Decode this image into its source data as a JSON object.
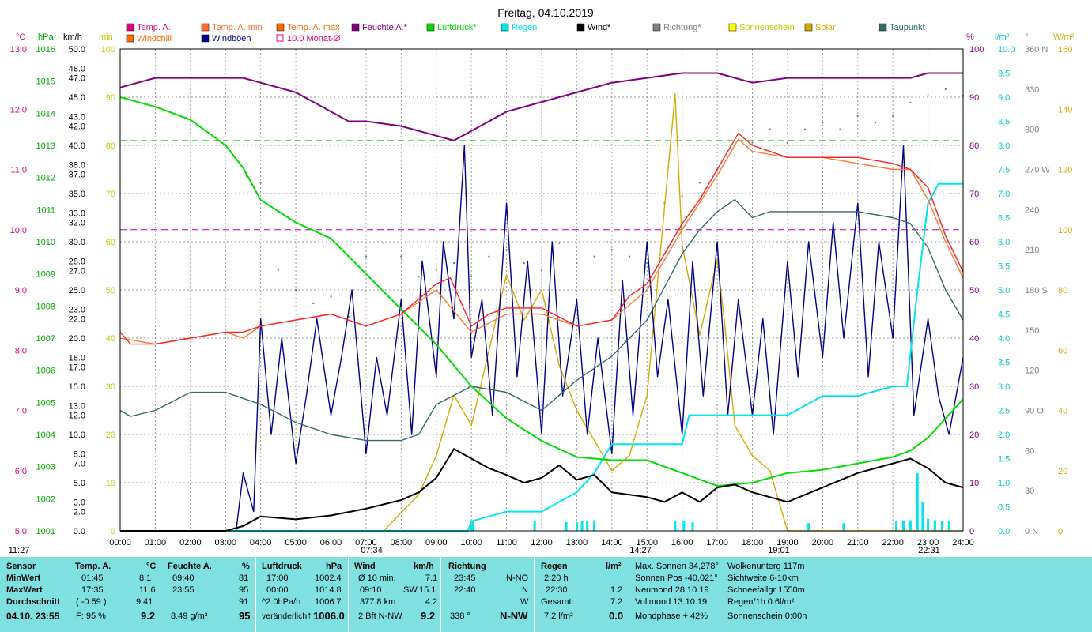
{
  "chart_data": {
    "type": "line",
    "title": "Freitag, 04.10.2019",
    "x_ticks": [
      "00:00",
      "01:00",
      "02:00",
      "03:00",
      "04:00",
      "05:00",
      "06:00",
      "07:00",
      "08:00",
      "09:00",
      "10:00",
      "11:00",
      "12:00",
      "13:00",
      "14:00",
      "15:00",
      "16:00",
      "17:00",
      "18:00",
      "19:00",
      "20:00",
      "21:00",
      "22:00",
      "23:00",
      "24:00"
    ],
    "sun_events": [
      "11:27",
      "07:34",
      "14:27",
      "19:01",
      "22:31"
    ],
    "legend": [
      {
        "name": "Temp. A.",
        "color": "#e0007f"
      },
      {
        "name": "Temp. A. min",
        "color": "#ff6a2a"
      },
      {
        "name": "Temp. A. max",
        "color": "#ff6a00"
      },
      {
        "name": "Feuchte A.*",
        "color": "#800080"
      },
      {
        "name": "Luftdruck*",
        "color": "#00dd00"
      },
      {
        "name": "Regen",
        "color": "#00e5ee"
      },
      {
        "name": "Wind*",
        "color": "#000000"
      },
      {
        "name": "Richtung*",
        "color": "#808080"
      },
      {
        "name": "Sonnenschein",
        "color": "#ffff00"
      },
      {
        "name": "Solar",
        "color": "#d4aa00"
      },
      {
        "name": "Taupunkt",
        "color": "#2e6b6b"
      },
      {
        "name": "Windchill",
        "color": "#ff6a00"
      },
      {
        "name": "Windböen",
        "color": "#00008b"
      },
      {
        "name": "10.0 Monat-Ø",
        "color": "#e0007f"
      }
    ],
    "axes": {
      "temp": {
        "unit": "°C",
        "ticks": [
          "13.0",
          "12.0",
          "11.0",
          "10.0",
          "9.0",
          "8.0",
          "7.0",
          "6.0",
          "5.0"
        ],
        "range": [
          5,
          13
        ]
      },
      "pressure": {
        "unit": "hPa",
        "ticks": [
          "1016",
          "1015",
          "1014",
          "1013",
          "1012",
          "1011",
          "1010",
          "1009",
          "1008",
          "1007",
          "1006",
          "1005",
          "1004",
          "1003",
          "1002",
          "1001"
        ],
        "range": [
          1001,
          1016
        ]
      },
      "wind": {
        "unit": "km/h",
        "ticks": [
          "50.0",
          "48.0",
          "47.0",
          "45.0",
          "43.0",
          "42.0",
          "40.0",
          "38.0",
          "37.0",
          "35.0",
          "33.0",
          "32.0",
          "30.0",
          "28.0",
          "27.0",
          "25.0",
          "23.0",
          "22.0",
          "20.0",
          "18.0",
          "17.0",
          "15.0",
          "13.0",
          "12.0",
          "10.0",
          "8.0",
          "7.0",
          "5.0",
          "3.0",
          "2.0",
          "0.0"
        ],
        "range": [
          0,
          50
        ]
      },
      "min": {
        "unit": "min",
        "ticks": [
          "100",
          "90",
          "80",
          "70",
          "60",
          "50",
          "40",
          "30",
          "20",
          "10",
          "0"
        ],
        "range": [
          0,
          100
        ]
      },
      "humidity": {
        "unit": "%",
        "ticks": [
          "100",
          "90",
          "80",
          "70",
          "60",
          "50",
          "40",
          "30",
          "20",
          "10",
          "0"
        ],
        "range": [
          0,
          100
        ]
      },
      "rain": {
        "unit": "l/m²",
        "ticks": [
          "10.0",
          "9.5",
          "9.0",
          "8.5",
          "8.0",
          "7.5",
          "7.0",
          "6.5",
          "6.0",
          "5.5",
          "5.0",
          "4.5",
          "4.0",
          "3.5",
          "3.0",
          "2.5",
          "2.0",
          "1.5",
          "1.0",
          "0.5",
          "0.0"
        ],
        "range": [
          0,
          10
        ]
      },
      "direction": {
        "unit": "°",
        "ticks": [
          "360 N",
          "330",
          "300",
          "270 W",
          "240",
          "210",
          "180 S",
          "150",
          "120",
          "90 O",
          "60",
          "30",
          "0 N"
        ],
        "range": [
          0,
          360
        ]
      },
      "solar": {
        "unit": "W/m²",
        "ticks": [
          "160",
          "140",
          "120",
          "100",
          "80",
          "60",
          "40",
          "20",
          "0"
        ],
        "range": [
          0,
          160
        ]
      }
    },
    "ref_lines": [
      {
        "name": "monthly avg temp",
        "value": 10.0,
        "color": "#aa00aa"
      },
      {
        "name": "humidity ref",
        "value": 81,
        "color": "#00cc00"
      }
    ],
    "series": [
      {
        "name": "Temp. A.",
        "axis": "temp",
        "color": "#ff2020",
        "x": [
          0,
          0.3,
          1,
          2,
          3,
          3.5,
          4,
          5,
          6,
          7,
          8,
          9,
          9.4,
          10,
          10.5,
          11,
          12,
          13,
          14,
          14.5,
          15,
          16,
          16.5,
          17,
          17.6,
          18,
          18.5,
          19,
          20,
          21,
          22,
          22.5,
          23,
          23.5,
          24
        ],
        "y": [
          8.3,
          8.1,
          8.1,
          8.2,
          8.3,
          8.3,
          8.4,
          8.5,
          8.6,
          8.4,
          8.6,
          9.1,
          9.2,
          8.4,
          8.6,
          8.7,
          8.7,
          8.4,
          8.5,
          8.9,
          9.1,
          10.1,
          10.5,
          11.0,
          11.6,
          11.4,
          11.3,
          11.2,
          11.2,
          11.2,
          11.1,
          11.0,
          10.7,
          9.9,
          9.3
        ]
      },
      {
        "name": "Temp. A. min",
        "axis": "temp",
        "color": "#ff7a30",
        "x": [
          0,
          1,
          2,
          3,
          3.5,
          4,
          5,
          6,
          7,
          8,
          9,
          10,
          11,
          12,
          13,
          14,
          15,
          16,
          17,
          17.6,
          18,
          19,
          20,
          21,
          22,
          22.5,
          23,
          23.5,
          24
        ],
        "y": [
          8.2,
          8.1,
          8.2,
          8.3,
          8.2,
          8.4,
          8.5,
          8.6,
          8.4,
          8.6,
          9.0,
          8.3,
          8.6,
          8.6,
          8.4,
          8.5,
          9.0,
          10.0,
          10.9,
          11.5,
          11.3,
          11.2,
          11.2,
          11.1,
          11.0,
          11.0,
          10.5,
          9.8,
          9.2
        ]
      },
      {
        "name": "Feuchte A.*",
        "axis": "humidity",
        "color": "#800080",
        "x": [
          0,
          0.5,
          1,
          2,
          3,
          3.5,
          4,
          5,
          6,
          6.5,
          7,
          8,
          9,
          9.5,
          10,
          11,
          12,
          13,
          14,
          15,
          16,
          17,
          17.5,
          18,
          19,
          20,
          21,
          22,
          22.5,
          23,
          24
        ],
        "y": [
          92,
          93,
          94,
          94,
          94,
          94,
          93,
          91,
          87,
          85,
          85,
          84,
          82,
          81,
          83,
          87,
          89,
          91,
          93,
          94,
          95,
          95,
          94,
          93,
          94,
          94,
          94,
          94,
          94,
          95,
          95
        ]
      },
      {
        "name": "Luftdruck*",
        "axis": "pressure",
        "color": "#00dd00",
        "x": [
          0,
          1,
          2,
          3,
          3.5,
          4,
          5,
          6,
          7,
          8,
          9,
          10,
          11,
          12,
          13,
          14,
          15,
          16,
          17,
          18,
          19,
          20,
          21,
          22,
          22.5,
          23,
          24
        ],
        "y": [
          1014.5,
          1014.2,
          1013.8,
          1013.0,
          1012.3,
          1011.3,
          1010.6,
          1010.1,
          1009.0,
          1007.9,
          1006.8,
          1005.5,
          1004.5,
          1003.8,
          1003.3,
          1003.2,
          1003.2,
          1002.8,
          1002.4,
          1002.5,
          1002.8,
          1002.9,
          1003.1,
          1003.3,
          1003.5,
          1003.9,
          1005.1
        ]
      },
      {
        "name": "Regen",
        "axis": "rain",
        "color": "#00e5ee",
        "x": [
          0,
          9.9,
          10,
          11,
          12,
          12.5,
          13,
          13.5,
          14,
          15,
          16,
          16.2,
          17,
          18,
          19,
          19.5,
          20,
          21,
          22,
          22.4,
          22.7,
          23,
          23.3,
          23.7,
          24
        ],
        "y": [
          0,
          0,
          0.2,
          0.4,
          0.4,
          0.6,
          0.8,
          1.2,
          1.8,
          1.8,
          1.8,
          2.4,
          2.4,
          2.4,
          2.4,
          2.6,
          2.8,
          2.8,
          3.0,
          3.0,
          5.0,
          6.8,
          7.2,
          7.2,
          7.2
        ]
      },
      {
        "name": "Taupunkt",
        "axis": "temp",
        "color": "#2e6b6b",
        "x": [
          0,
          0.3,
          1,
          2,
          3,
          3.5,
          4,
          5,
          6,
          7,
          7.5,
          8,
          8.5,
          9,
          10,
          11,
          12,
          13,
          14,
          15,
          16,
          16.5,
          17,
          17.5,
          18,
          18.5,
          19,
          20,
          21,
          22,
          22.5,
          23,
          23.5,
          24
        ],
        "y": [
          7.0,
          6.9,
          7.0,
          7.3,
          7.3,
          7.2,
          7.1,
          6.8,
          6.6,
          6.5,
          6.5,
          6.5,
          6.6,
          7.1,
          7.4,
          7.3,
          7.0,
          7.5,
          7.9,
          8.5,
          9.6,
          10.0,
          10.3,
          10.5,
          10.2,
          10.3,
          10.3,
          10.3,
          10.3,
          10.2,
          10.1,
          9.7,
          9.0,
          8.5
        ]
      },
      {
        "name": "Solar",
        "axis": "solar",
        "color": "#d4aa00",
        "x": [
          0,
          7.5,
          8,
          8.5,
          9,
          9.5,
          10,
          10.5,
          11,
          11.5,
          12,
          12.5,
          13,
          13.5,
          14,
          14.5,
          15,
          15.4,
          15.8,
          16,
          16.5,
          17,
          17.2,
          17.5,
          18,
          18.5,
          19,
          20,
          24
        ],
        "y": [
          0,
          0,
          6,
          12,
          25,
          45,
          35,
          60,
          85,
          70,
          80,
          55,
          40,
          30,
          20,
          25,
          45,
          95,
          145,
          95,
          65,
          90,
          70,
          35,
          25,
          20,
          0,
          0,
          0
        ]
      },
      {
        "name": "Wind*",
        "axis": "wind",
        "color": "#000000",
        "x": [
          0,
          3,
          3.5,
          4,
          5,
          6,
          7,
          8,
          8.5,
          9,
          9.5,
          10,
          10.5,
          11,
          11.5,
          12,
          12.5,
          13,
          13.5,
          14,
          15,
          15.5,
          16,
          16.5,
          17,
          17.5,
          18,
          18.5,
          19,
          20,
          21,
          22,
          22.5,
          23,
          23.5,
          24
        ],
        "y": [
          0,
          0,
          0.5,
          1.5,
          1.2,
          1.6,
          2.3,
          3.2,
          4.0,
          5.5,
          8.5,
          7.5,
          6.5,
          5.8,
          5.0,
          5.5,
          6.8,
          5.3,
          5.8,
          4.0,
          3.5,
          3.0,
          4.0,
          3.0,
          4.5,
          4.8,
          4.0,
          3.5,
          3.0,
          4.5,
          6.0,
          7.0,
          7.5,
          6.5,
          5.0,
          4.5
        ]
      },
      {
        "name": "Windböen",
        "axis": "wind",
        "color": "#00008b",
        "x": [
          0,
          3.3,
          3.5,
          3.8,
          4,
          4.3,
          4.6,
          5,
          5.3,
          5.6,
          6,
          6.3,
          6.6,
          7,
          7.3,
          7.6,
          8,
          8.3,
          8.6,
          9,
          9.2,
          9.5,
          9.8,
          10,
          10.3,
          10.6,
          11,
          11.3,
          11.6,
          12,
          12.3,
          12.6,
          13,
          13.3,
          13.6,
          14,
          14.3,
          14.6,
          15,
          15.3,
          15.6,
          16,
          16.3,
          16.6,
          17,
          17.3,
          17.6,
          18,
          18.3,
          18.6,
          19,
          19.3,
          19.6,
          20,
          20.3,
          20.6,
          21,
          21.3,
          21.6,
          22,
          22.3,
          22.6,
          23,
          23.3,
          23.6,
          24
        ],
        "y": [
          0,
          0,
          6,
          2,
          22,
          10,
          20,
          7,
          14,
          22,
          12,
          18,
          25,
          8,
          18,
          12,
          24,
          10,
          28,
          16,
          30,
          22,
          40,
          18,
          24,
          12,
          34,
          16,
          28,
          10,
          30,
          14,
          24,
          10,
          20,
          8,
          26,
          12,
          30,
          16,
          24,
          10,
          28,
          14,
          30,
          12,
          24,
          12,
          22,
          10,
          28,
          16,
          30,
          18,
          32,
          20,
          34,
          16,
          30,
          20,
          40,
          12,
          22,
          14,
          10,
          18
        ]
      }
    ],
    "direction_points_deg": [
      [
        3.6,
        265
      ],
      [
        4.0,
        260
      ],
      [
        4.5,
        195
      ],
      [
        5.0,
        180
      ],
      [
        5.5,
        170
      ],
      [
        6.0,
        175
      ],
      [
        6.5,
        160
      ],
      [
        7.0,
        205
      ],
      [
        7.5,
        215
      ],
      [
        8.0,
        205
      ],
      [
        8.5,
        190
      ],
      [
        9.0,
        195
      ],
      [
        9.5,
        200
      ],
      [
        10.0,
        190
      ],
      [
        10.5,
        205
      ],
      [
        11.0,
        210
      ],
      [
        11.5,
        200
      ],
      [
        12.0,
        195
      ],
      [
        12.5,
        215
      ],
      [
        13.0,
        200
      ],
      [
        13.5,
        205
      ],
      [
        14.0,
        210
      ],
      [
        14.5,
        205
      ],
      [
        15.0,
        200
      ],
      [
        15.5,
        245
      ],
      [
        16.0,
        250
      ],
      [
        16.5,
        260
      ],
      [
        17.0,
        270
      ],
      [
        17.5,
        280
      ],
      [
        18.0,
        290
      ],
      [
        18.5,
        300
      ],
      [
        19.0,
        290
      ],
      [
        19.5,
        300
      ],
      [
        20.0,
        305
      ],
      [
        20.5,
        300
      ],
      [
        21.0,
        310
      ],
      [
        21.5,
        305
      ],
      [
        22.0,
        310
      ],
      [
        22.5,
        320
      ],
      [
        23.0,
        325
      ],
      [
        23.5,
        330
      ],
      [
        24.0,
        325
      ]
    ]
  },
  "summary": {
    "headers": {
      "sensor": "Sensor",
      "temp": "Temp. A.",
      "temp_unit": "°C",
      "humidity": "Feuchte A.",
      "humidity_unit": "%",
      "pressure": "Luftdruck",
      "pressure_unit": "hPa",
      "wind": "Wind",
      "wind_unit": "km/h",
      "direction": "Richtung",
      "rain": "Regen",
      "rain_unit": "l/m²"
    },
    "row_labels": {
      "min": "MinWert",
      "max": "MaxWert",
      "avg": "Durchschnitt",
      "last": "04.10. 23:55"
    },
    "temp": {
      "min_time": "01:45",
      "min_val": "8.1",
      "max_time": "17:35",
      "max_val": "11.6",
      "avg_change": "( -0.59 )",
      "avg_val": "9.41",
      "humidity_f": "F: 95 %",
      "current": "9.2"
    },
    "humidity": {
      "min_time": "09:40",
      "min_val": "81",
      "max_time": "23:55",
      "max_val": "95",
      "avg_val": "91",
      "abs": "8.49 g/m³",
      "current": "95"
    },
    "pressure": {
      "min_time": "17:00",
      "min_val": "1002.4",
      "max_time": "00:00",
      "max_val": "1014.8",
      "trend": "^2.0hPa/h",
      "avg_val": "1006.7",
      "state": "veränderlich",
      "current": "1006.0"
    },
    "wind": {
      "avg_label": "Ø 10 min.",
      "avg_val": "7.1",
      "max_time": "09:10",
      "max_dir": "SW",
      "max_val": "15.1",
      "distance": "377.8 km",
      "distance_val": "4.2",
      "bft": "2 Bft N-NW",
      "current": "9.2"
    },
    "direction": {
      "r1_time": "23:45",
      "r1_dir": "N-NO",
      "r2_time": "22:40",
      "r2_dir": "N",
      "r3_dir": "W",
      "deg": "338 °",
      "current": "N-NW"
    },
    "rain": {
      "dur": "2:20 h",
      "last_time": "22:30",
      "last_val": "1.2",
      "total_label": "Gesamt:",
      "total_val": "7.2",
      "daily": "7.2 l/m²",
      "current": "0.0"
    },
    "sun": [
      "Max. Sonnen 34,278°",
      "Sonnen Pos  -40,021°",
      "Neumond    28.10.19",
      "Vollmond    13.10.19",
      "Mondphase      + 42%"
    ],
    "misc": [
      "Wolkenunterg  117m",
      "Sichtweite    6-10km",
      "Schneefallgr  1550m",
      "Regen/1h      0.6l/m²",
      "Sonnenschein  0:00h"
    ]
  }
}
